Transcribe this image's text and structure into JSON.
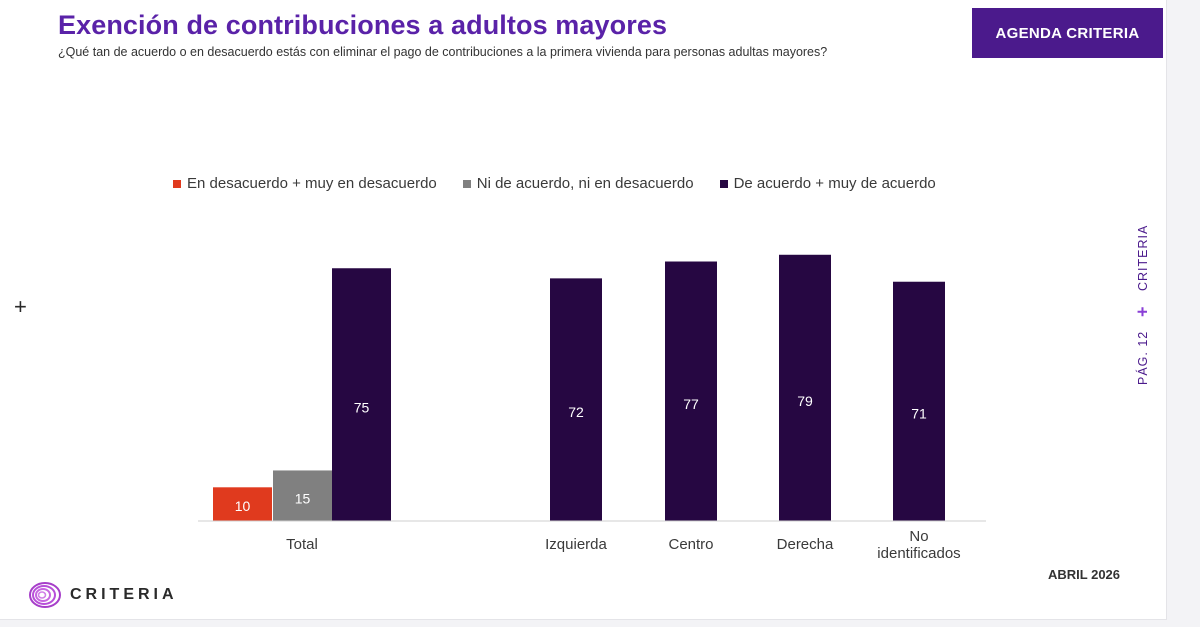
{
  "header": {
    "title": "Exención de contribuciones a adultos mayores",
    "subtitle": "¿Qué tan de acuerdo o en desacuerdo estás con eliminar el pago de contribuciones a la primera vivienda para personas adultas mayores?",
    "agenda_label": "AGENDA CRITERIA"
  },
  "side": {
    "brand": "CRITERIA",
    "page": "PÁG. 12",
    "plus": "+"
  },
  "left_marker": "+",
  "footer": {
    "date": "ABRIL 2026",
    "logo_text": "CRITERIA"
  },
  "colors": {
    "red": "#e03a1e",
    "gray": "#808080",
    "purple": "#260742",
    "accent": "#5a22a8"
  },
  "chart_data": {
    "type": "bar",
    "title": "Exención de contribuciones a adultos mayores",
    "xlabel": "",
    "ylabel": "",
    "ylim": [
      0,
      80
    ],
    "grid": false,
    "legend_position": "top",
    "legend": [
      {
        "name": "En desacuerdo + muy en desacuerdo",
        "color": "#e03a1e"
      },
      {
        "name": "Ni de acuerdo, ni en desacuerdo",
        "color": "#808080"
      },
      {
        "name": "De acuerdo + muy de acuerdo",
        "color": "#260742"
      }
    ],
    "groups": [
      {
        "category": "Total",
        "bars": [
          {
            "series": "En desacuerdo + muy en desacuerdo",
            "value": 10,
            "color": "#e03a1e"
          },
          {
            "series": "Ni de acuerdo, ni en desacuerdo",
            "value": 15,
            "color": "#808080"
          },
          {
            "series": "De acuerdo + muy de acuerdo",
            "value": 75,
            "color": "#260742"
          }
        ]
      },
      {
        "category": "Izquierda",
        "bars": [
          {
            "series": "De acuerdo + muy de acuerdo",
            "value": 72,
            "color": "#260742"
          }
        ]
      },
      {
        "category": "Centro",
        "bars": [
          {
            "series": "De acuerdo + muy de acuerdo",
            "value": 77,
            "color": "#260742"
          }
        ]
      },
      {
        "category": "Derecha",
        "bars": [
          {
            "series": "De acuerdo + muy de acuerdo",
            "value": 79,
            "color": "#260742"
          }
        ]
      },
      {
        "category": "No identificados",
        "bars": [
          {
            "series": "De acuerdo + muy de acuerdo",
            "value": 71,
            "color": "#260742"
          }
        ]
      }
    ]
  }
}
